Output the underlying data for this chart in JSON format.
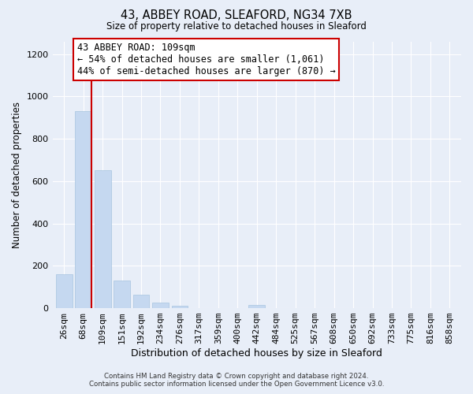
{
  "title": "43, ABBEY ROAD, SLEAFORD, NG34 7XB",
  "subtitle": "Size of property relative to detached houses in Sleaford",
  "xlabel": "Distribution of detached houses by size in Sleaford",
  "ylabel": "Number of detached properties",
  "bar_labels": [
    "26sqm",
    "68sqm",
    "109sqm",
    "151sqm",
    "192sqm",
    "234sqm",
    "276sqm",
    "317sqm",
    "359sqm",
    "400sqm",
    "442sqm",
    "484sqm",
    "525sqm",
    "567sqm",
    "608sqm",
    "650sqm",
    "692sqm",
    "733sqm",
    "775sqm",
    "816sqm",
    "858sqm"
  ],
  "bar_values": [
    160,
    930,
    650,
    130,
    63,
    28,
    10,
    0,
    0,
    0,
    15,
    0,
    0,
    0,
    0,
    0,
    0,
    0,
    0,
    0,
    0
  ],
  "bar_color": "#c5d8f0",
  "bar_edge_color": "#a8c4e0",
  "highlight_line_color": "#cc0000",
  "ylim": [
    0,
    1260
  ],
  "yticks": [
    0,
    200,
    400,
    600,
    800,
    1000,
    1200
  ],
  "annotation_title": "43 ABBEY ROAD: 109sqm",
  "annotation_line1": "← 54% of detached houses are smaller (1,061)",
  "annotation_line2": "44% of semi-detached houses are larger (870) →",
  "annotation_box_color": "#ffffff",
  "annotation_box_edgecolor": "#cc0000",
  "footer_line1": "Contains HM Land Registry data © Crown copyright and database right 2024.",
  "footer_line2": "Contains public sector information licensed under the Open Government Licence v3.0.",
  "bg_color": "#e8eef8"
}
